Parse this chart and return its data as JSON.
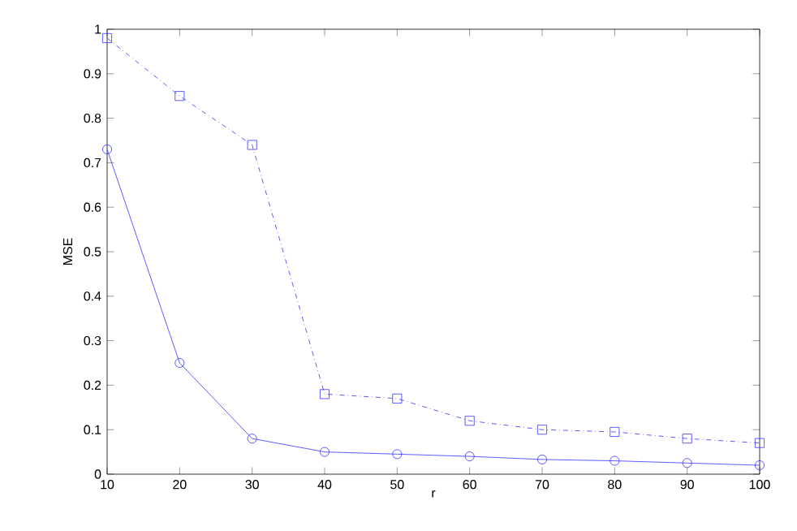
{
  "chart_data": {
    "type": "line",
    "xlabel": "r",
    "ylabel": "MSE",
    "x": [
      10,
      20,
      30,
      40,
      50,
      60,
      70,
      80,
      90,
      100
    ],
    "series": [
      {
        "color": "#3333ff",
        "marker": "square",
        "line_style": "dashed",
        "values": [
          0.98,
          0.85,
          0.74,
          0.18,
          0.17,
          0.12,
          0.1,
          0.095,
          0.08,
          0.07
        ]
      },
      {
        "color": "#3333ff",
        "marker": "circle",
        "line_style": "solid",
        "values": [
          0.73,
          0.25,
          0.08,
          0.05,
          0.045,
          0.04,
          0.033,
          0.03,
          0.025,
          0.02
        ]
      }
    ],
    "xlim": [
      10,
      100
    ],
    "ylim": [
      0,
      1
    ],
    "xticks": [
      10,
      20,
      30,
      40,
      50,
      60,
      70,
      80,
      90,
      100
    ],
    "yticks": [
      0,
      0.1,
      0.2,
      0.3,
      0.4,
      0.5,
      0.6,
      0.7,
      0.8,
      0.9,
      1
    ],
    "grid": false
  }
}
